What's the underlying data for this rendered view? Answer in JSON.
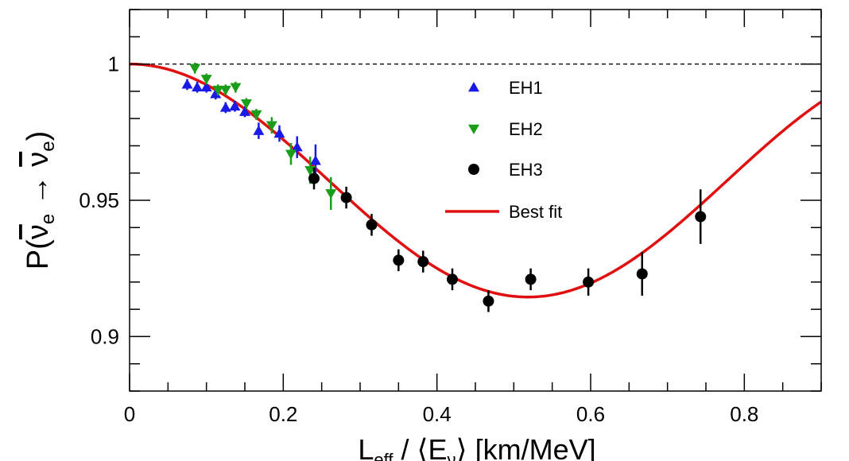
{
  "chart_data": {
    "type": "scatter",
    "title": "",
    "xlabel": {
      "main": "L",
      "sub": "eff",
      "rest": " / ⟨E",
      "sub2": "ν",
      "tail": "⟩ [km/MeV]"
    },
    "ylabel": {
      "prefix": "P(",
      "nu1": "ν",
      "sub1": "e",
      "arrow": " → ",
      "nu2": "ν",
      "sub2": "e",
      "suffix": ")"
    },
    "xlim": [
      0,
      0.9
    ],
    "ylim": [
      0.88,
      1.02
    ],
    "xticks": [
      0,
      0.2,
      0.4,
      0.6,
      0.8
    ],
    "xtick_labels": [
      "0",
      "0.2",
      "0.4",
      "0.6",
      "0.8"
    ],
    "yticks": [
      0.9,
      0.95,
      1.0
    ],
    "ytick_labels": [
      "0.9",
      "0.95",
      "1"
    ],
    "reference_line": {
      "y": 1.0,
      "style": "dashed"
    },
    "legend_position": "top-right",
    "series": [
      {
        "name": "EH1",
        "marker": "triangle-up",
        "color": "#1a1ae6",
        "points": [
          {
            "x": 0.075,
            "y": 0.9925,
            "err": 0.002
          },
          {
            "x": 0.088,
            "y": 0.9915,
            "err": 0.002
          },
          {
            "x": 0.1,
            "y": 0.9915,
            "err": 0.002
          },
          {
            "x": 0.112,
            "y": 0.989,
            "err": 0.002
          },
          {
            "x": 0.125,
            "y": 0.984,
            "err": 0.002
          },
          {
            "x": 0.137,
            "y": 0.9845,
            "err": 0.002
          },
          {
            "x": 0.15,
            "y": 0.9825,
            "err": 0.002
          },
          {
            "x": 0.168,
            "y": 0.9755,
            "err": 0.003
          },
          {
            "x": 0.195,
            "y": 0.9745,
            "err": 0.003
          },
          {
            "x": 0.218,
            "y": 0.9695,
            "err": 0.004
          },
          {
            "x": 0.242,
            "y": 0.9645,
            "err": 0.006
          }
        ]
      },
      {
        "name": "EH2",
        "marker": "triangle-down",
        "color": "#1a9e1a",
        "points": [
          {
            "x": 0.085,
            "y": 0.9985,
            "err": 0.002
          },
          {
            "x": 0.1,
            "y": 0.9945,
            "err": 0.002
          },
          {
            "x": 0.115,
            "y": 0.9905,
            "err": 0.002
          },
          {
            "x": 0.125,
            "y": 0.9905,
            "err": 0.002
          },
          {
            "x": 0.138,
            "y": 0.9915,
            "err": 0.002
          },
          {
            "x": 0.152,
            "y": 0.9855,
            "err": 0.002
          },
          {
            "x": 0.165,
            "y": 0.9815,
            "err": 0.002
          },
          {
            "x": 0.185,
            "y": 0.9775,
            "err": 0.003
          },
          {
            "x": 0.21,
            "y": 0.967,
            "err": 0.004
          },
          {
            "x": 0.235,
            "y": 0.961,
            "err": 0.005
          },
          {
            "x": 0.262,
            "y": 0.9525,
            "err": 0.006
          }
        ]
      },
      {
        "name": "EH3",
        "marker": "circle",
        "color": "#000000",
        "points": [
          {
            "x": 0.24,
            "y": 0.958,
            "err": 0.004
          },
          {
            "x": 0.282,
            "y": 0.951,
            "err": 0.004
          },
          {
            "x": 0.315,
            "y": 0.941,
            "err": 0.004
          },
          {
            "x": 0.35,
            "y": 0.928,
            "err": 0.004
          },
          {
            "x": 0.382,
            "y": 0.9275,
            "err": 0.004
          },
          {
            "x": 0.42,
            "y": 0.921,
            "err": 0.004
          },
          {
            "x": 0.467,
            "y": 0.913,
            "err": 0.004
          },
          {
            "x": 0.522,
            "y": 0.921,
            "err": 0.004
          },
          {
            "x": 0.597,
            "y": 0.92,
            "err": 0.005
          },
          {
            "x": 0.667,
            "y": 0.923,
            "err": 0.008
          },
          {
            "x": 0.743,
            "y": 0.944,
            "err": 0.01
          }
        ]
      }
    ],
    "fit": {
      "name": "Best fit",
      "color": "#e01010",
      "amplitude": 0.0855,
      "k": 3.03
    },
    "legend_entries": [
      "EH1",
      "EH2",
      "EH3",
      "Best fit"
    ]
  }
}
